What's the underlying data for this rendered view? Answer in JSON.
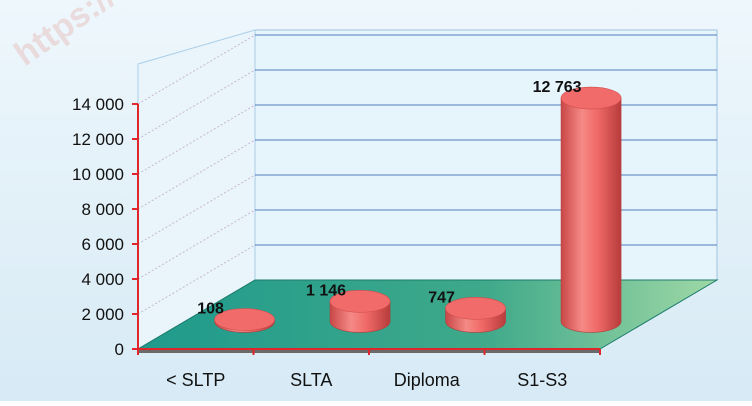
{
  "watermark": "https://",
  "chart_data": {
    "type": "bar",
    "categories": [
      "< SLTP",
      "SLTA",
      "Diploma",
      "S1-S3"
    ],
    "values": [
      108,
      1146,
      747,
      12763
    ],
    "value_labels": [
      "108",
      "1 146",
      "747",
      "12 763"
    ],
    "ytick_labels": [
      "0",
      "2 000",
      "4 000",
      "6 000",
      "8 000",
      "10 000",
      "12 000",
      "14 000"
    ],
    "ylim": [
      0,
      14000
    ],
    "title": "",
    "xlabel": "",
    "ylabel": "",
    "grid": true,
    "style": "3d-cylinder",
    "colors": {
      "background": "#dfeef7",
      "wall": "#e6f4fb",
      "floor": "#2fa38e",
      "bar": "#f26b6b",
      "bar_dark": "#c94747",
      "axis": "#e0262b",
      "gridline": "#3b67b5"
    }
  }
}
